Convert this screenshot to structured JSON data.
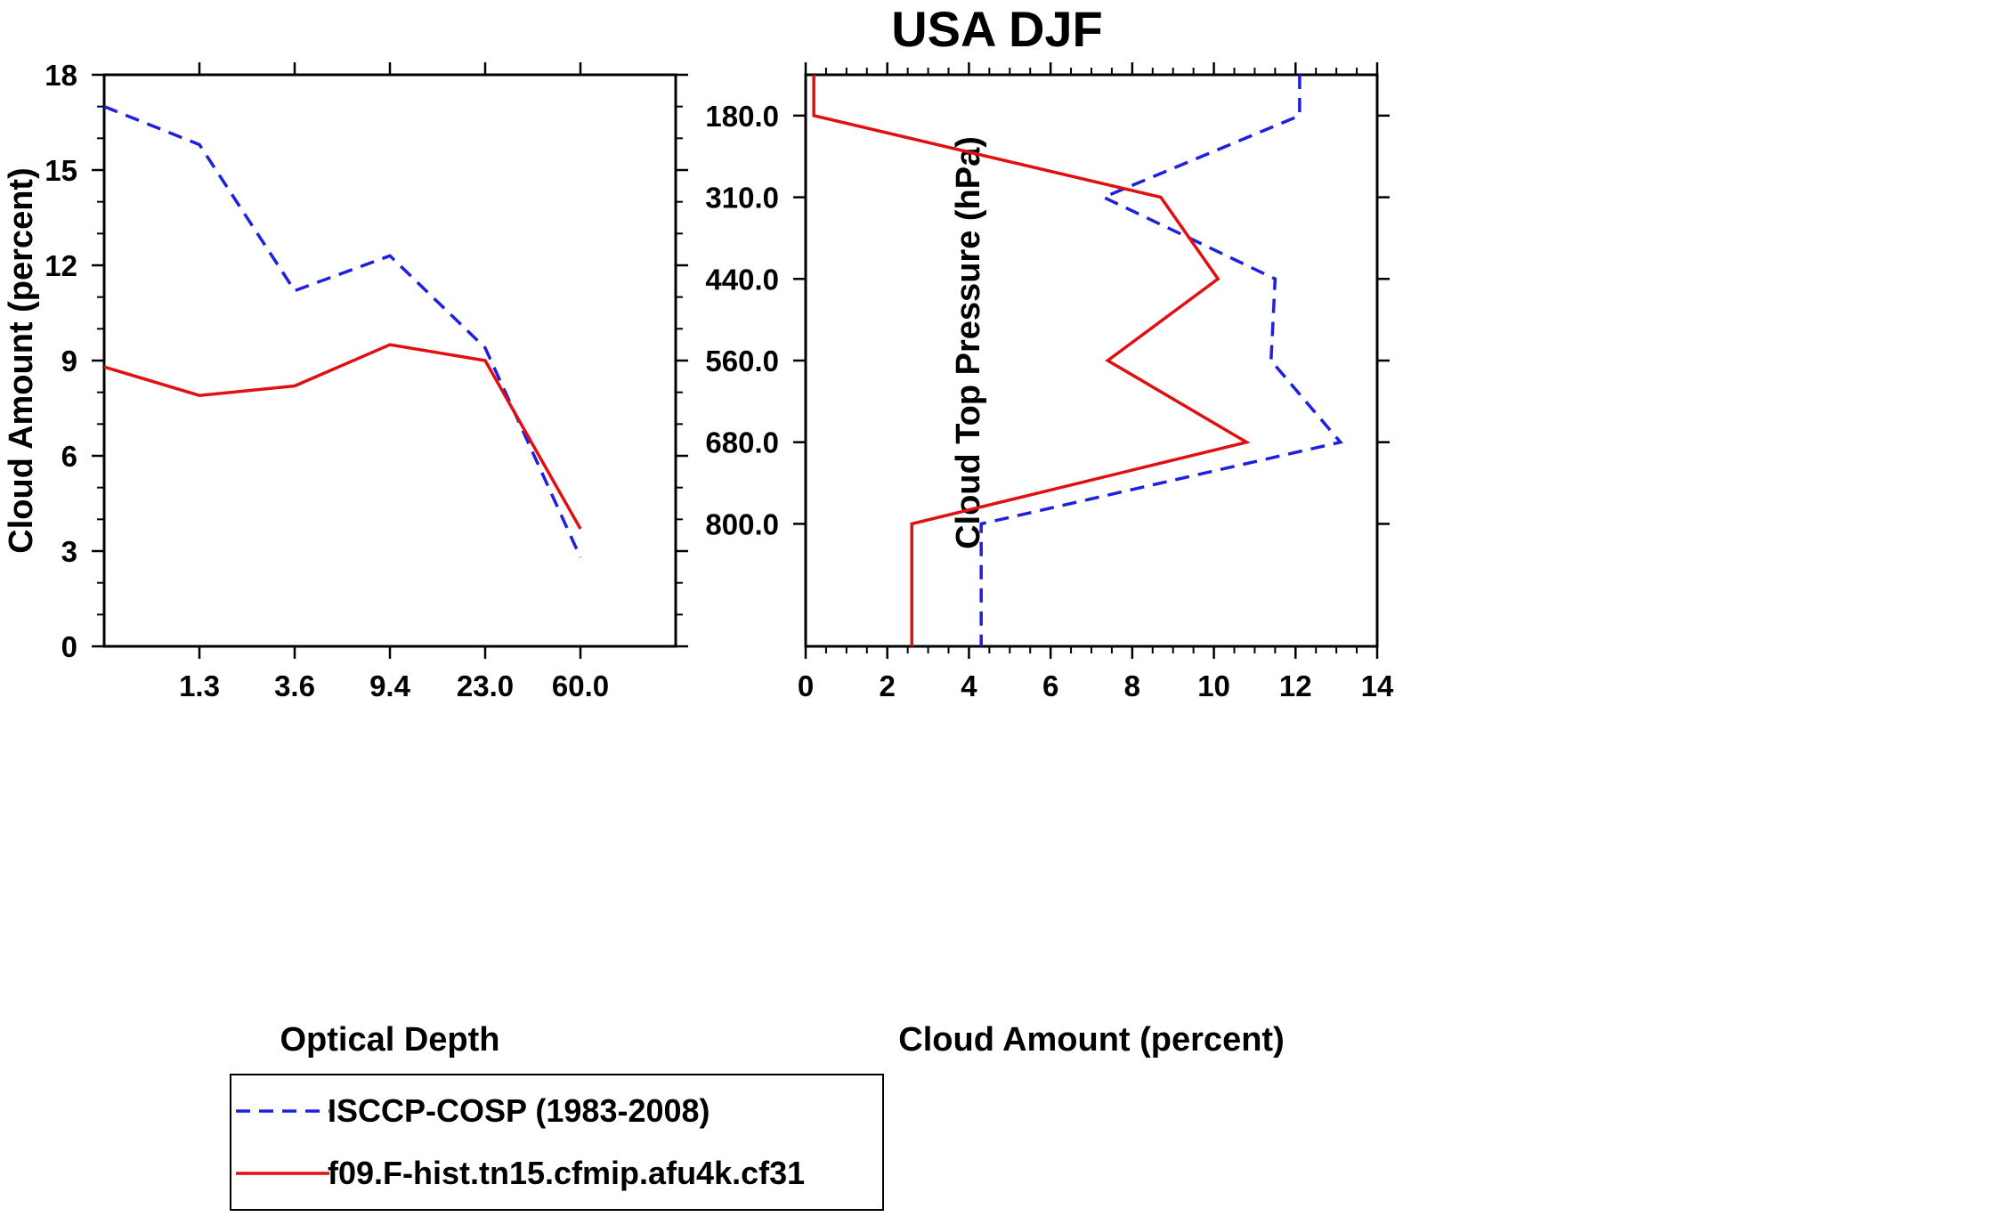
{
  "figure_title": "USA DJF",
  "colors": {
    "observation": "#1f1fe0",
    "model": "#e01010",
    "axis": "#000000"
  },
  "legend": {
    "entries": [
      {
        "label": "ISCCP-COSP (1983-2008)",
        "style": "dashed",
        "color": "#1f1fe0"
      },
      {
        "label": "f09.F-hist.tn15.cfmip.afu4k.cf31",
        "style": "solid",
        "color": "#e01010"
      }
    ]
  },
  "chart_data": [
    {
      "type": "line",
      "title": "",
      "xlabel": "Optical Depth",
      "ylabel": "Cloud Amount (percent)",
      "x_bins": [
        0,
        1,
        2,
        3,
        4,
        5,
        6
      ],
      "x_tick_labels": [
        "1.3",
        "3.6",
        "9.4",
        "23.0",
        "60.0"
      ],
      "ylim": [
        0,
        18
      ],
      "y_ticks": [
        0,
        3,
        6,
        9,
        12,
        15,
        18
      ],
      "series": [
        {
          "name": "ISCCP-COSP (1983-2008)",
          "values": [
            17.0,
            15.8,
            11.2,
            12.3,
            9.4,
            2.8
          ]
        },
        {
          "name": "f09.F-hist.tn15.cfmip.afu4k.cf31",
          "values": [
            8.8,
            7.9,
            8.2,
            9.5,
            9.0,
            3.7
          ]
        }
      ]
    },
    {
      "type": "line",
      "title": "",
      "xlabel": "Cloud Amount (percent)",
      "ylabel": "Cloud Top Pressure (hPa)",
      "xlim": [
        0,
        14
      ],
      "x_ticks": [
        0,
        2,
        4,
        6,
        8,
        10,
        12,
        14
      ],
      "y_bins": [
        0,
        7
      ],
      "y_tick_labels": [
        "180.0",
        "310.0",
        "440.0",
        "560.0",
        "680.0",
        "800.0"
      ],
      "series": [
        {
          "name": "ISCCP-COSP (1983-2008)",
          "values": [
            12.1,
            7.3,
            11.5,
            11.4,
            13.1,
            4.3
          ]
        },
        {
          "name": "f09.F-hist.tn15.cfmip.afu4k.cf31",
          "values": [
            0.2,
            8.7,
            10.1,
            7.4,
            10.8,
            2.6
          ]
        }
      ]
    }
  ]
}
